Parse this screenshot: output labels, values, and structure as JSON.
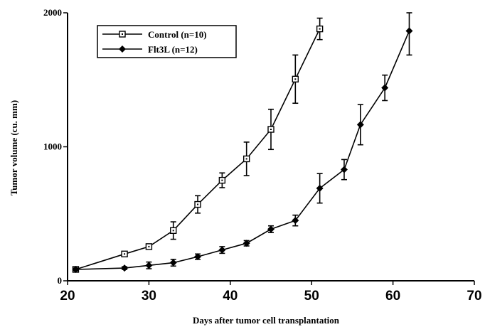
{
  "chart_data": {
    "type": "line",
    "xlabel": "Days after tumor cell transplantation",
    "ylabel": "Tumor volume (cu. mm)",
    "xlim": [
      20,
      70
    ],
    "ylim": [
      0,
      2000
    ],
    "xticks": [
      "20",
      "30",
      "40",
      "50",
      "60",
      "70"
    ],
    "yticks": [
      "0",
      "1000",
      "2000"
    ],
    "grid": false,
    "legend_position": "top-left",
    "series": [
      {
        "name": "Control (n=10)",
        "marker": "open-square",
        "x": [
          21,
          27,
          30,
          33,
          36,
          39,
          42,
          45,
          48,
          51
        ],
        "y": [
          85,
          200,
          255,
          375,
          570,
          750,
          910,
          1130,
          1505,
          1880
        ],
        "err": [
          12,
          15,
          20,
          65,
          65,
          55,
          125,
          150,
          180,
          80
        ]
      },
      {
        "name": "Flt3L  (n=12)",
        "marker": "filled-diamond",
        "x": [
          21,
          27,
          30,
          33,
          36,
          39,
          42,
          45,
          48,
          51,
          54,
          56,
          59,
          62
        ],
        "y": [
          85,
          95,
          115,
          135,
          180,
          230,
          280,
          385,
          450,
          690,
          830,
          1165,
          1440,
          1865
        ],
        "err": [
          10,
          10,
          25,
          25,
          20,
          25,
          20,
          25,
          40,
          110,
          75,
          150,
          95,
          180
        ]
      }
    ]
  }
}
